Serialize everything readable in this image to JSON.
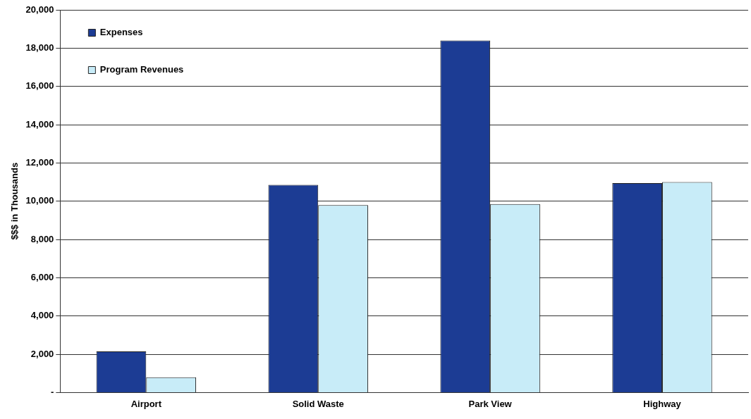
{
  "chart_data": {
    "type": "bar",
    "ylabel": "$$$ in Thousands",
    "categories": [
      "Airport",
      "Solid Waste",
      "Park View",
      "Highway"
    ],
    "series": [
      {
        "name": "Expenses",
        "color": "#1c3c94",
        "values": [
          2150,
          10850,
          18400,
          10950
        ]
      },
      {
        "name": "Program Revenues",
        "color": "#c8ecf8",
        "values": [
          800,
          9800,
          9850,
          11000
        ]
      }
    ],
    "ylim": [
      0,
      20000
    ],
    "yticks": [
      {
        "value": 0,
        "label": "-"
      },
      {
        "value": 2000,
        "label": "2,000"
      },
      {
        "value": 4000,
        "label": "4,000"
      },
      {
        "value": 6000,
        "label": "6,000"
      },
      {
        "value": 8000,
        "label": "8,000"
      },
      {
        "value": 10000,
        "label": "10,000"
      },
      {
        "value": 12000,
        "label": "12,000"
      },
      {
        "value": 14000,
        "label": "14,000"
      },
      {
        "value": 16000,
        "label": "16,000"
      },
      {
        "value": 18000,
        "label": "18,000"
      },
      {
        "value": 20000,
        "label": "20,000"
      }
    ],
    "grid": "y",
    "legend": "top left"
  }
}
